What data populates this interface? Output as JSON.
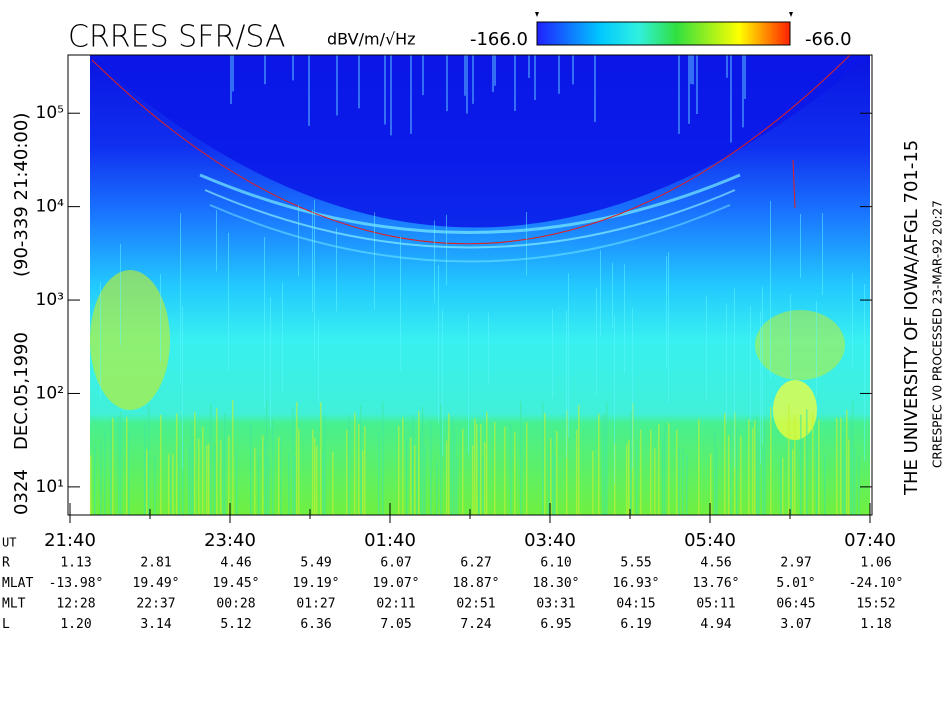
{
  "chart_data": {
    "type": "spectrogram",
    "title": "CRRES SFR/SA",
    "colorbar": {
      "label": "dBV/m/√Hz",
      "range": [
        {
          "value": -166,
          "label": "-166.0"
        },
        {
          "value": -66,
          "label": "-66.0"
        }
      ]
    },
    "orbit": "0324",
    "date": "DEC.05,1990",
    "start": "(90-339 21:40:00)",
    "right_text": "THE UNIVERSITY OF IOWA/AFGL 701-15",
    "right_note": "CRRESPEC V0   PROCESSED 23-MAR-92  20:27",
    "log_y": true,
    "ylim": [
      5,
      420000
    ],
    "yticks": [
      {
        "value": 10,
        "label": "10¹"
      },
      {
        "value": 100,
        "label": "10²"
      },
      {
        "value": 1000,
        "label": "10³"
      },
      {
        "value": 10000,
        "label": "10⁴"
      },
      {
        "value": 100000,
        "label": "10⁵"
      }
    ],
    "x_label": "UT",
    "xticks": [
      "21:40",
      "23:40",
      "01:40",
      "03:40",
      "05:40",
      "07:40"
    ],
    "ephemeris": [
      {
        "label": "R",
        "values": [
          "1.13",
          "2.81",
          "4.46",
          "5.49",
          "6.07",
          "6.27",
          "6.10",
          "5.55",
          "4.56",
          "2.97",
          "1.06"
        ]
      },
      {
        "label": "MLAT",
        "values": [
          "-13.98°",
          "19.49°",
          "19.45°",
          "19.19°",
          "19.07°",
          "18.87°",
          "18.30°",
          "16.93°",
          "13.76°",
          "5.01°",
          "-24.10°"
        ]
      },
      {
        "label": "MLT",
        "values": [
          "12:28",
          "22:37",
          "00:28",
          "01:27",
          "02:11",
          "02:51",
          "03:31",
          "04:15",
          "05:11",
          "06:45",
          "15:52"
        ]
      },
      {
        "label": "L",
        "values": [
          "1.20",
          "3.14",
          "5.12",
          "6.36",
          "7.05",
          "7.24",
          "6.95",
          "6.19",
          "4.94",
          "3.07",
          "1.18"
        ]
      }
    ]
  }
}
